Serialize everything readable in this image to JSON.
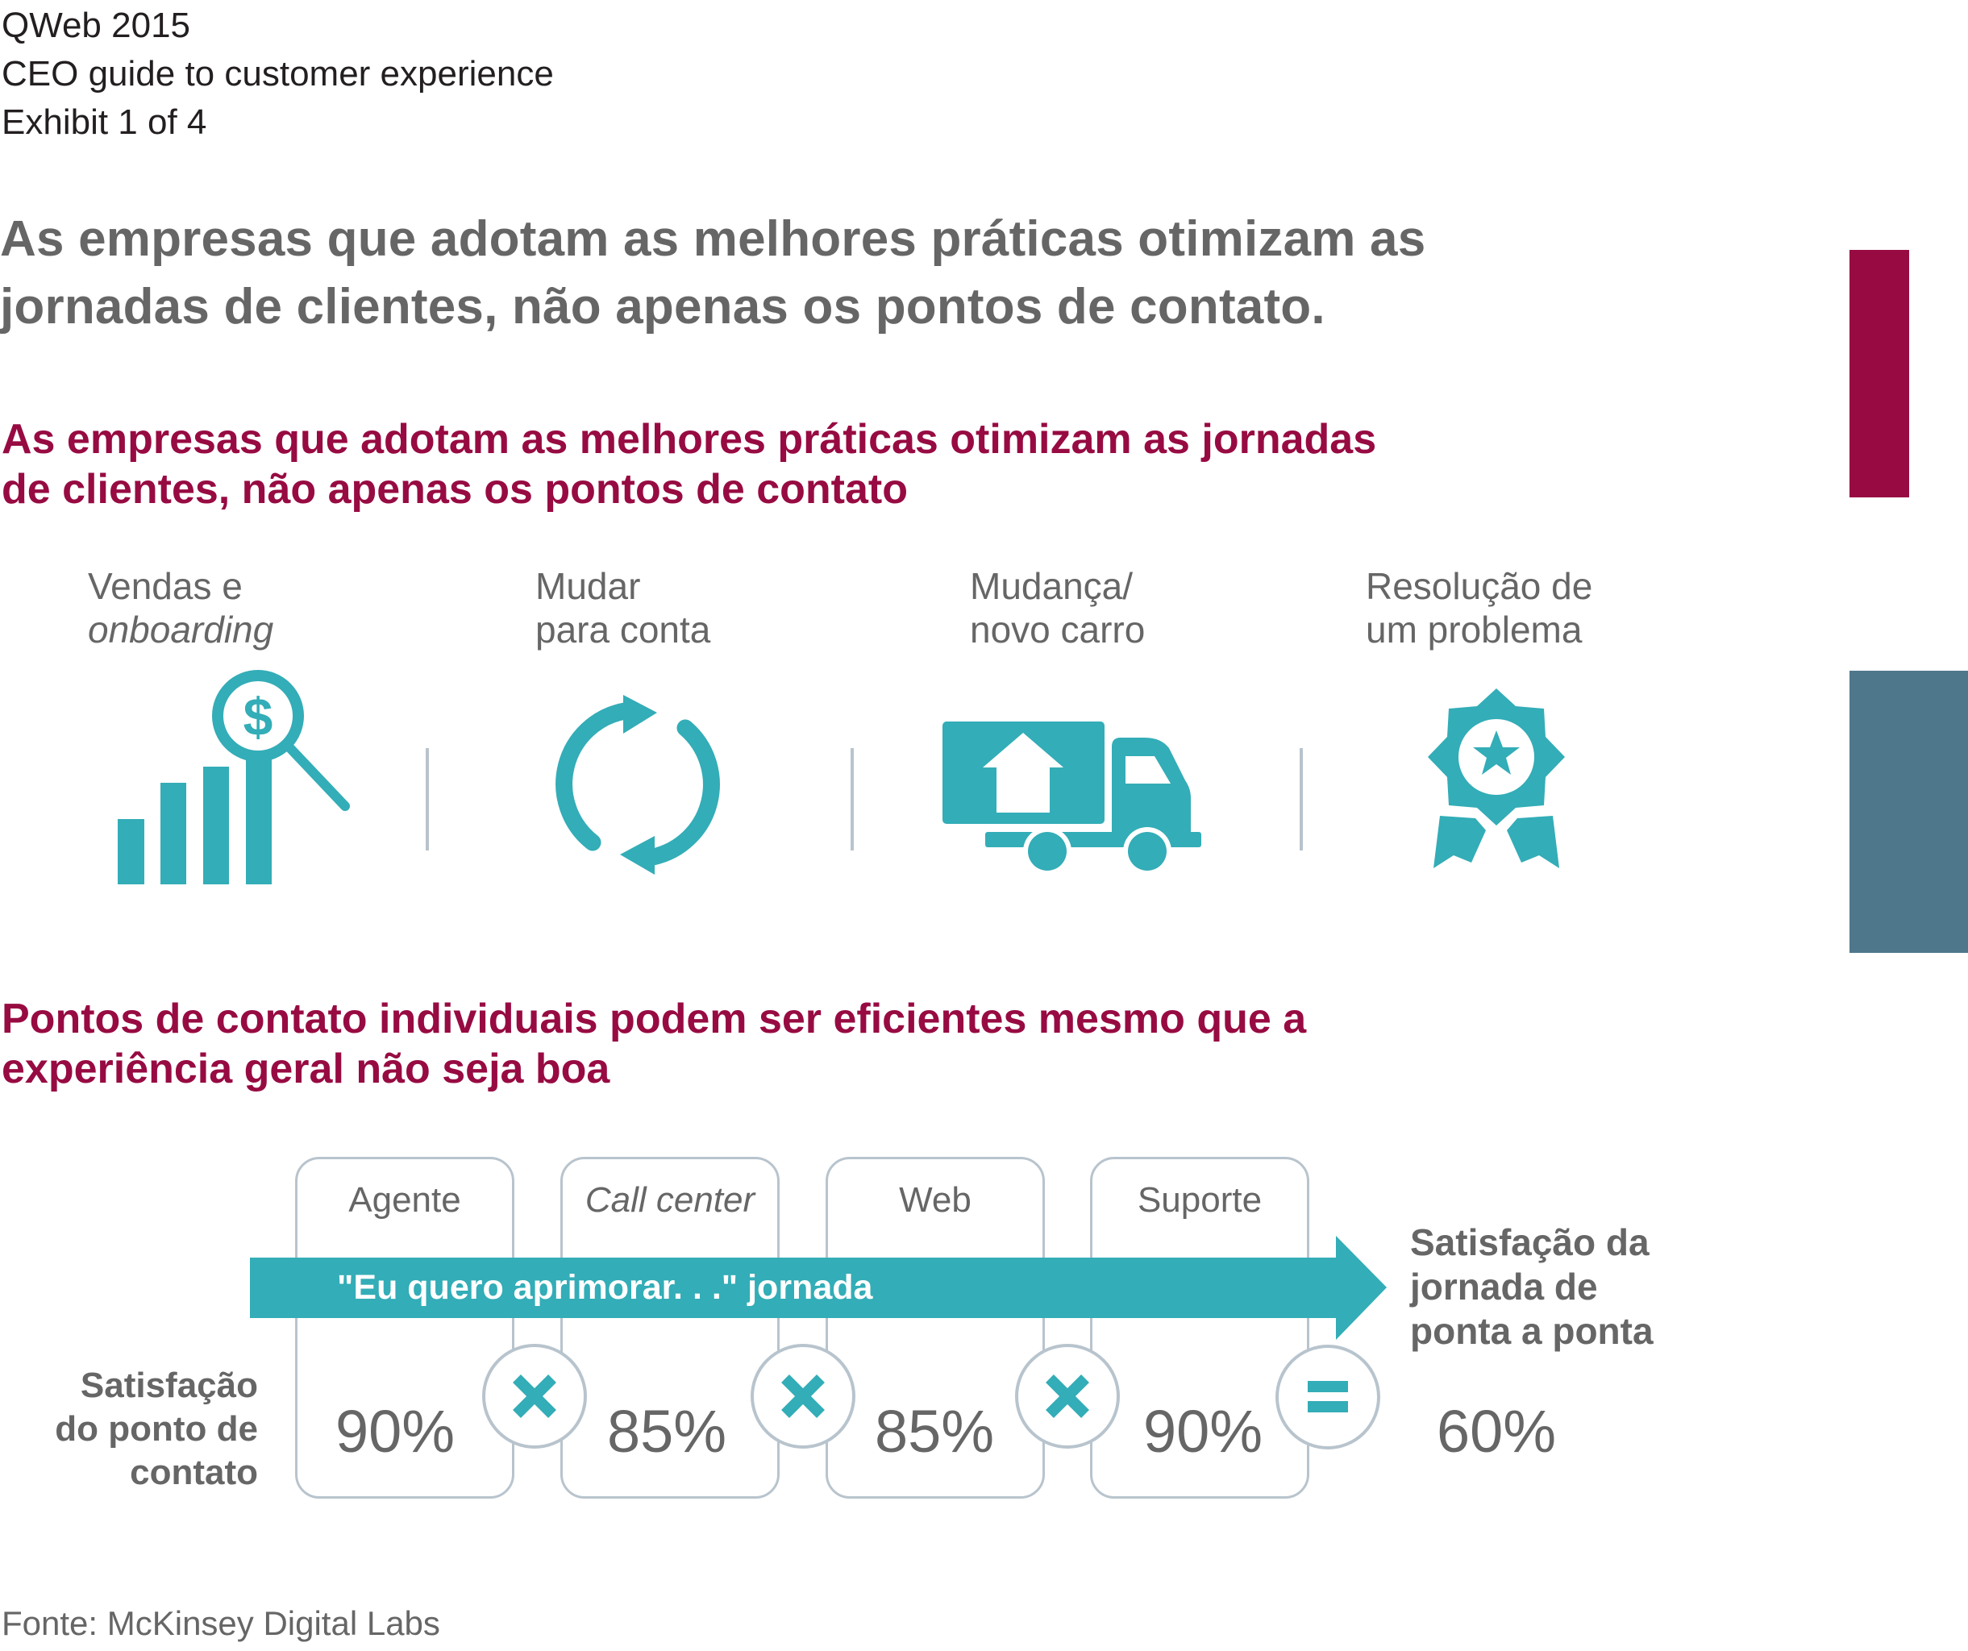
{
  "header": {
    "publication": "QWeb 2015",
    "series": "CEO guide to customer experience",
    "exhibit": "Exhibit 1 of 4"
  },
  "headline": {
    "line1": "As empresas que adotam as melhores práticas otimizam as",
    "line2": "jornadas de clientes, não apenas os pontos de contato."
  },
  "section1": {
    "title_line1": "As empresas que adotam as melhores práticas otimizam as jornadas",
    "title_line2": "de clientes, não apenas os pontos de contato",
    "journeys": [
      {
        "line1": "Vendas e",
        "line2": "onboarding",
        "line2_italic": true,
        "icon": "sales-chart-magnifier-icon"
      },
      {
        "line1": "Mudar",
        "line2": "para conta",
        "line2_italic": false,
        "icon": "refresh-cycle-icon"
      },
      {
        "line1": "Mudança/",
        "line2": "novo carro",
        "line2_italic": false,
        "icon": "moving-truck-icon"
      },
      {
        "line1": "Resolução de",
        "line2": "um problema",
        "line2_italic": false,
        "icon": "award-badge-icon"
      }
    ]
  },
  "section2": {
    "title_line1": "Pontos de contato individuais podem ser eficientes mesmo que a",
    "title_line2": "experiência geral não seja boa",
    "journey_band": "\"Eu quero aprimorar. . .\" jornada",
    "row_label": {
      "line1": "Satisfação",
      "line2": "do ponto de",
      "line3": "contato"
    },
    "touchpoints": [
      {
        "name": "Agente",
        "italic": false,
        "satisfaction": "90%"
      },
      {
        "name": "Call center",
        "italic": true,
        "satisfaction": "85%"
      },
      {
        "name": "Web",
        "italic": false,
        "satisfaction": "85%"
      },
      {
        "name": "Suporte",
        "italic": false,
        "satisfaction": "90%"
      }
    ],
    "operators": [
      "multiply-icon",
      "multiply-icon",
      "multiply-icon",
      "equals-icon"
    ],
    "result": {
      "label_line1": "Satisfação da",
      "label_line2": "jornada de",
      "label_line3": "ponta a ponta",
      "value": "60%"
    }
  },
  "source": "Fonte: McKinsey Digital Labs",
  "colors": {
    "accent_teal": "#33adb7",
    "crimson": "#970b42",
    "slate_blue": "#4e778c",
    "text_gray": "#666666",
    "border_gray": "#b8c4cd"
  }
}
